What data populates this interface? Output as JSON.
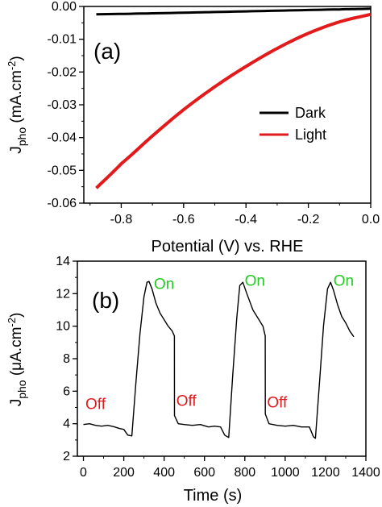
{
  "chart_data": [
    {
      "panel": "(a)",
      "type": "line",
      "xlabel": "Potential (V) vs. RHE",
      "ylabel_main": "J",
      "ylabel_sub": "pho",
      "ylabel_unit": "(mA.cm",
      "ylabel_sup": "-2",
      "ylabel_close": ")",
      "xlim": [
        -0.92,
        0.0
      ],
      "ylim": [
        -0.06,
        0.0
      ],
      "xticks": [
        -0.8,
        -0.6,
        -0.4,
        -0.2,
        0.0
      ],
      "xtick_labels": [
        "-0.8",
        "-0.6",
        "-0.4",
        "-0.2",
        "0.0"
      ],
      "yticks": [
        0.0,
        -0.01,
        -0.02,
        -0.03,
        -0.04,
        -0.05,
        -0.06
      ],
      "ytick_labels": [
        "0.00",
        "-0.01",
        "-0.02",
        "-0.03",
        "-0.04",
        "-0.05",
        "-0.06"
      ],
      "legend_position": "middle-right",
      "series": [
        {
          "name": "Dark",
          "color": "#000000",
          "x": [
            -0.88,
            -0.7,
            -0.5,
            -0.3,
            -0.1,
            0.0
          ],
          "y": [
            -0.0024,
            -0.0021,
            -0.0017,
            -0.0013,
            -0.0009,
            -0.0007
          ]
        },
        {
          "name": "Light",
          "color": "#e31a1c",
          "x": [
            -0.88,
            -0.8,
            -0.7,
            -0.6,
            -0.5,
            -0.4,
            -0.3,
            -0.2,
            -0.1,
            0.0
          ],
          "y": [
            -0.0554,
            -0.048,
            -0.0395,
            -0.0315,
            -0.0245,
            -0.0183,
            -0.0128,
            -0.0082,
            -0.0047,
            -0.0024
          ]
        }
      ]
    },
    {
      "panel": "(b)",
      "type": "line",
      "xlabel": "Time (s)",
      "ylabel_main": "J",
      "ylabel_sub": "pho",
      "ylabel_unit": "(μA.cm",
      "ylabel_sup": "-2",
      "ylabel_close": ")",
      "xlim": [
        -30,
        1400
      ],
      "ylim": [
        2,
        14
      ],
      "xticks": [
        0,
        200,
        400,
        600,
        800,
        1000,
        1200,
        1400
      ],
      "xtick_labels": [
        "0",
        "200",
        "400",
        "600",
        "800",
        "1000",
        "1200",
        "1400"
      ],
      "yticks": [
        2,
        4,
        6,
        8,
        10,
        12,
        14
      ],
      "ytick_labels": [
        "2",
        "4",
        "6",
        "8",
        "10",
        "12",
        "14"
      ],
      "series": [
        {
          "color": "#000000",
          "x": [
            0,
            30,
            60,
            90,
            120,
            150,
            180,
            200,
            220,
            240,
            260,
            280,
            300,
            315,
            325,
            340,
            360,
            380,
            400,
            420,
            440,
            451,
            451.5,
            470,
            500,
            540,
            580,
            620,
            650,
            680,
            700,
            720,
            740,
            760,
            775,
            790,
            810,
            840,
            870,
            890,
            901,
            901.5,
            920,
            960,
            1000,
            1040,
            1080,
            1120,
            1140,
            1150,
            1170,
            1190,
            1210,
            1225,
            1240,
            1260,
            1280,
            1300,
            1320,
            1340
          ],
          "y": [
            3.95,
            4.0,
            3.9,
            3.85,
            3.9,
            3.82,
            3.7,
            3.65,
            3.3,
            3.25,
            6.5,
            9.5,
            11.8,
            12.7,
            12.75,
            12.3,
            11.4,
            10.8,
            10.4,
            10.0,
            9.7,
            9.4,
            4.5,
            4.0,
            3.95,
            3.9,
            3.95,
            3.8,
            3.85,
            3.8,
            3.3,
            3.15,
            7.0,
            10.5,
            12.5,
            12.7,
            12.0,
            11.0,
            10.4,
            10.0,
            9.4,
            4.6,
            4.0,
            3.9,
            3.85,
            3.9,
            3.8,
            3.8,
            3.2,
            3.1,
            6.5,
            10.0,
            12.3,
            12.7,
            12.2,
            11.3,
            10.6,
            10.2,
            9.7,
            9.35
          ]
        }
      ],
      "annotations": [
        {
          "text": "Off",
          "x": 60,
          "y": 4.9,
          "color": "#e31a1c"
        },
        {
          "text": "On",
          "x": 400,
          "y": 12.3,
          "color": "#22cc22"
        },
        {
          "text": "Off",
          "x": 510,
          "y": 5.1,
          "color": "#e31a1c"
        },
        {
          "text": "On",
          "x": 850,
          "y": 12.5,
          "color": "#22cc22"
        },
        {
          "text": "Off",
          "x": 960,
          "y": 5.0,
          "color": "#e31a1c"
        },
        {
          "text": "On",
          "x": 1290,
          "y": 12.5,
          "color": "#22cc22"
        }
      ]
    }
  ],
  "panel_a_label": "(a)",
  "panel_b_label": "(b)",
  "legend_dark": "Dark",
  "legend_light": "Light"
}
